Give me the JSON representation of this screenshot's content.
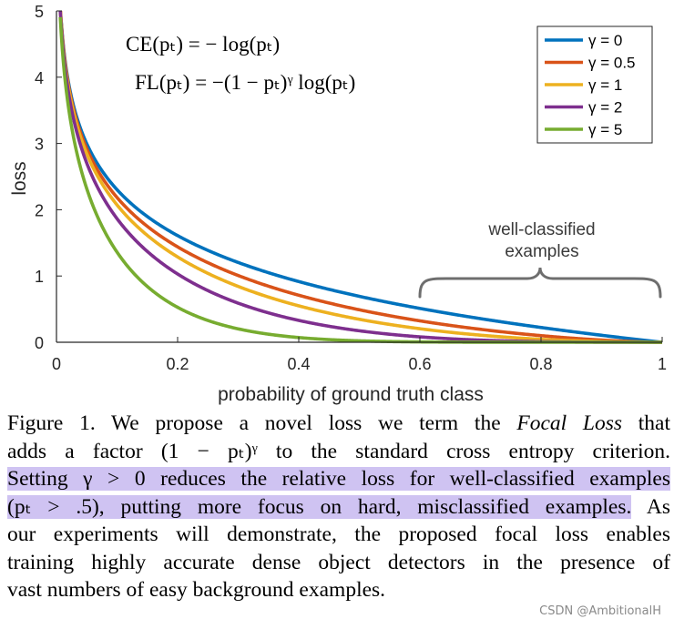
{
  "chart_data": {
    "type": "line",
    "xlabel": "probability of ground truth class",
    "ylabel": "loss",
    "xlim": [
      0,
      1
    ],
    "ylim": [
      0,
      5
    ],
    "x_ticks": [
      "0",
      "0.2",
      "0.4",
      "0.6",
      "0.8",
      "1"
    ],
    "y_ticks": [
      "0",
      "1",
      "2",
      "3",
      "4",
      "5"
    ],
    "grid": false,
    "legend_position": "top-right",
    "x": [
      0.01,
      0.05,
      0.1,
      0.2,
      0.3,
      0.4,
      0.5,
      0.6,
      0.7,
      0.8,
      0.9,
      1.0
    ],
    "series": [
      {
        "name": "γ = 0",
        "color": "#0072BD",
        "values": [
          4.61,
          3.0,
          2.3,
          1.61,
          1.2,
          0.92,
          0.69,
          0.51,
          0.36,
          0.22,
          0.11,
          0.0
        ]
      },
      {
        "name": "γ = 0.5",
        "color": "#D95319",
        "values": [
          4.58,
          2.92,
          2.18,
          1.44,
          1.01,
          0.71,
          0.49,
          0.32,
          0.2,
          0.1,
          0.03,
          0.0
        ]
      },
      {
        "name": "γ = 1",
        "color": "#EDB120",
        "values": [
          4.56,
          2.85,
          2.07,
          1.29,
          0.84,
          0.55,
          0.35,
          0.2,
          0.11,
          0.04,
          0.01,
          0.0
        ]
      },
      {
        "name": "γ = 2",
        "color": "#7E2F8E",
        "values": [
          4.51,
          2.7,
          1.87,
          1.03,
          0.59,
          0.33,
          0.17,
          0.08,
          0.03,
          0.01,
          0.0,
          0.0
        ]
      },
      {
        "name": "γ = 5",
        "color": "#77AC30",
        "values": [
          4.38,
          2.32,
          1.36,
          0.53,
          0.2,
          0.07,
          0.02,
          0.01,
          0.0,
          0.0,
          0.0,
          0.0
        ]
      }
    ],
    "annotations": {
      "formula_ce": "CE(pₜ) = − log(pₜ)",
      "formula_fl": "FL(pₜ) = −(1 − pₜ)ᵞ log(pₜ)",
      "bracket_line1": "well-classified",
      "bracket_line2": "examples",
      "bracket_range": [
        0.6,
        1.0
      ]
    }
  },
  "caption": {
    "prefix": "Figure 1. We propose a novel loss we term the ",
    "focal_loss": "Focal Loss",
    "after_focal": " that",
    "line2": "adds a factor (1 − pₜ)ᵞ to the standard cross entropy criterion.",
    "highlight1": "Setting γ > 0 reduces the relative loss for well-classified examples",
    "highlight2": "(pₜ > .5), putting more focus on hard, misclassified examples.",
    "after_highlight": " As",
    "line4": "our experiments will demonstrate, the proposed focal loss enables",
    "line5": "training highly accurate dense object detectors in the presence of",
    "line6": "vast numbers of easy background examples."
  },
  "watermark": "CSDN @AmbitionalH"
}
